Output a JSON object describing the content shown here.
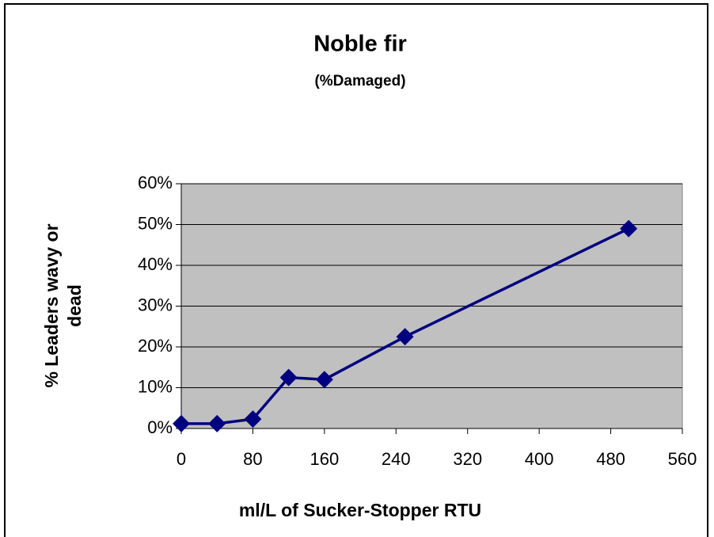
{
  "chart_data": {
    "type": "line",
    "title": "Noble fir",
    "subtitle": "(%Damaged)",
    "xlabel": "ml/L of Sucker-Stopper RTU",
    "ylabel": [
      "% Leaders wavy or",
      "dead"
    ],
    "x": [
      0,
      40,
      80,
      120,
      160,
      250,
      500
    ],
    "series": [
      {
        "name": "Noble fir",
        "color": "#000080",
        "values": [
          1.2,
          1.2,
          2.3,
          12.5,
          12,
          22.5,
          49
        ]
      }
    ],
    "xlim": [
      0,
      560
    ],
    "xticks": [
      0,
      80,
      160,
      240,
      320,
      400,
      480,
      560
    ],
    "ylim": [
      0,
      60
    ],
    "yticks": [
      {
        "value": 0,
        "label": "0%"
      },
      {
        "value": 10,
        "label": "10%"
      },
      {
        "value": 20,
        "label": "20%"
      },
      {
        "value": 30,
        "label": "30%"
      },
      {
        "value": 40,
        "label": "40%"
      },
      {
        "value": 50,
        "label": "50%"
      },
      {
        "value": 60,
        "label": "60%"
      }
    ],
    "grid": true,
    "background": "#c0c0c0"
  }
}
